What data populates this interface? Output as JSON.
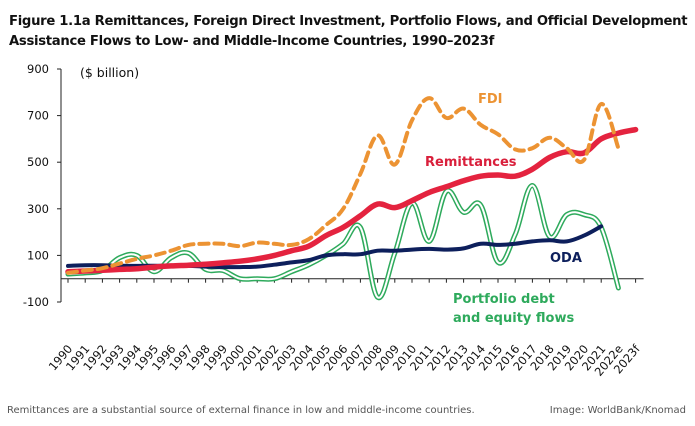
{
  "title_line1": "Figure 1.1a Remittances, Foreign Direct Investment, Portfolio Flows, and Official Development",
  "title_line2": "Assistance Flows to Low- and Middle-Income Countries, 1990–2023f",
  "footer": {
    "caption": "Remittances are a substantial source of external finance in low and middle-income countries.",
    "credit": "Image: WorldBank/Knomad"
  },
  "chart_data": {
    "type": "line",
    "title": "Figure 1.1a Remittances, Foreign Direct Investment, Portfolio Flows, and Official Development Assistance Flows to Low- and Middle-Income Countries, 1990–2023f",
    "unit_label": "($ billion)",
    "xlabel": "",
    "ylabel": "$ billion",
    "ylim": [
      -100,
      900
    ],
    "yticks": [
      900,
      700,
      500,
      300,
      100,
      -100
    ],
    "grid": false,
    "legend": "inline labels",
    "categories": [
      "1990",
      "1991",
      "1992",
      "1993",
      "1994",
      "1995",
      "1996",
      "1997",
      "1998",
      "1999",
      "2000",
      "2001",
      "2002",
      "2003",
      "2004",
      "2005",
      "2006",
      "2007",
      "2008",
      "2009",
      "2010",
      "2011",
      "2012",
      "2013",
      "2014",
      "2015",
      "2016",
      "2017",
      "2018",
      "2019",
      "2020",
      "2021",
      "2022e",
      "2023f"
    ],
    "series": [
      {
        "name": "FDI",
        "label": "FDI",
        "color": "#ec9333",
        "style": "dashed",
        "values": [
          25,
          35,
          45,
          65,
          85,
          100,
          120,
          145,
          150,
          150,
          140,
          155,
          150,
          145,
          170,
          230,
          300,
          450,
          615,
          490,
          680,
          775,
          690,
          730,
          660,
          620,
          555,
          560,
          605,
          560,
          510,
          750,
          560,
          null
        ]
      },
      {
        "name": "Remittances",
        "label": "Remittances",
        "color": "#e4233f",
        "style": "solid-thick",
        "values": [
          30,
          33,
          36,
          40,
          43,
          50,
          55,
          58,
          62,
          68,
          75,
          85,
          100,
          120,
          140,
          185,
          220,
          270,
          320,
          305,
          335,
          370,
          395,
          420,
          440,
          445,
          440,
          470,
          520,
          545,
          540,
          600,
          625,
          640
        ]
      },
      {
        "name": "ODA",
        "label": "ODA",
        "color": "#0d1f5c",
        "style": "solid",
        "values": [
          55,
          58,
          58,
          56,
          55,
          56,
          55,
          55,
          52,
          50,
          50,
          52,
          60,
          70,
          80,
          100,
          105,
          105,
          120,
          120,
          125,
          128,
          125,
          130,
          150,
          145,
          150,
          160,
          165,
          160,
          185,
          225,
          null,
          null
        ]
      },
      {
        "name": "Portfolio debt and equity flows",
        "label": "Portfolio debt\nand equity flows",
        "color": "#2eaa5c",
        "style": "double",
        "values": [
          20,
          25,
          35,
          90,
          100,
          30,
          90,
          110,
          40,
          35,
          0,
          0,
          0,
          30,
          60,
          100,
          150,
          220,
          -80,
          110,
          325,
          160,
          375,
          285,
          315,
          70,
          190,
          400,
          180,
          275,
          275,
          220,
          -40,
          null
        ]
      }
    ]
  }
}
